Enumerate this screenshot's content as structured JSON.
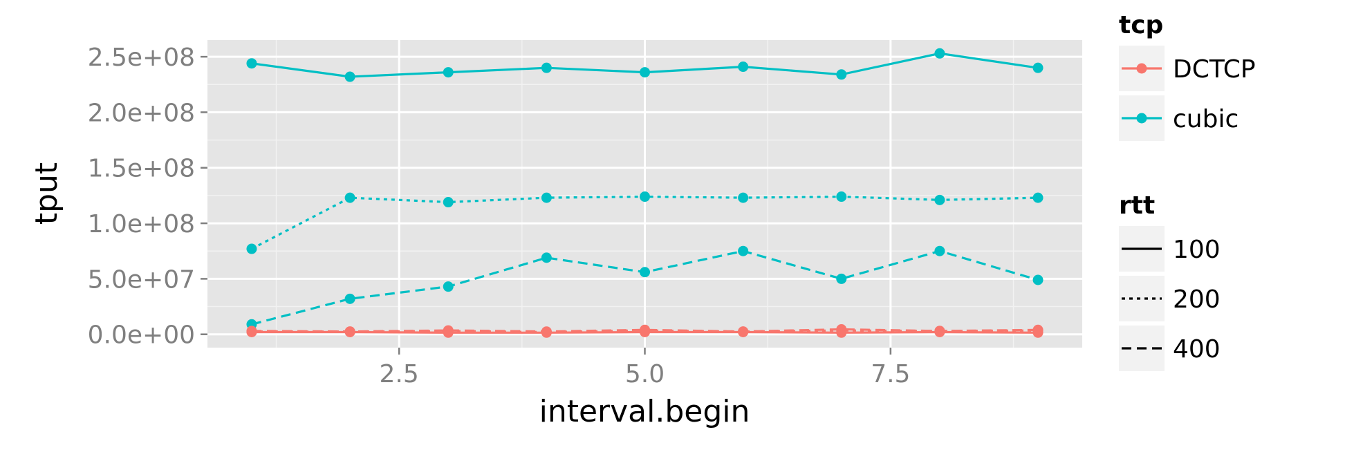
{
  "chart_data": {
    "type": "line",
    "xlabel": "interval.begin",
    "ylabel": "tput",
    "xlim": [
      0.55,
      9.45
    ],
    "ylim": [
      -12000000,
      265000000
    ],
    "x_ticks": [
      2.5,
      5.0,
      7.5
    ],
    "x_tick_labels": [
      "2.5",
      "5.0",
      "7.5"
    ],
    "y_ticks": [
      0,
      50000000,
      100000000,
      150000000,
      200000000,
      250000000
    ],
    "y_tick_labels": [
      "0.0e+00",
      "5.0e+07",
      "1.0e+08",
      "1.5e+08",
      "2.0e+08",
      "2.5e+08"
    ],
    "grid": true,
    "legend_placement": "right",
    "legends": [
      {
        "title": "tcp",
        "entries": [
          {
            "label": "DCTCP",
            "color": "#F8766D"
          },
          {
            "label": "cubic",
            "color": "#00BFC4"
          }
        ]
      },
      {
        "title": "rtt",
        "entries": [
          {
            "label": "100",
            "linetype": "solid"
          },
          {
            "label": "200",
            "linetype": "dotted"
          },
          {
            "label": "400",
            "linetype": "dashed"
          }
        ]
      }
    ],
    "x": [
      1,
      2,
      3,
      4,
      5,
      6,
      7,
      8,
      9
    ],
    "series": [
      {
        "tcp": "cubic",
        "rtt": "100",
        "color": "#00BFC4",
        "linetype": "solid",
        "values": [
          244000000,
          232000000,
          236000000,
          240000000,
          236000000,
          241000000,
          234000000,
          253000000,
          240000000
        ]
      },
      {
        "tcp": "cubic",
        "rtt": "200",
        "color": "#00BFC4",
        "linetype": "dotted",
        "values": [
          77000000,
          123000000,
          119000000,
          123000000,
          124000000,
          123000000,
          124000000,
          121000000,
          123000000
        ]
      },
      {
        "tcp": "cubic",
        "rtt": "400",
        "color": "#00BFC4",
        "linetype": "dashed",
        "values": [
          9000000,
          32000000,
          43000000,
          69000000,
          56000000,
          75000000,
          50000000,
          75000000,
          49000000
        ]
      },
      {
        "tcp": "DCTCP",
        "rtt": "100",
        "color": "#F8766D",
        "linetype": "solid",
        "values": [
          2000000,
          2000000,
          1500000,
          1500000,
          2000000,
          2000000,
          1500000,
          2000000,
          1500000
        ]
      },
      {
        "tcp": "DCTCP",
        "rtt": "200",
        "color": "#F8766D",
        "linetype": "dotted",
        "values": [
          2500000,
          2500000,
          3000000,
          2000000,
          3500000,
          2500000,
          3500000,
          3000000,
          3500000
        ]
      },
      {
        "tcp": "DCTCP",
        "rtt": "400",
        "color": "#F8766D",
        "linetype": "dashed",
        "values": [
          3000000,
          2500000,
          3500000,
          2500000,
          4000000,
          2500000,
          4500000,
          3000000,
          4000000
        ]
      }
    ]
  }
}
